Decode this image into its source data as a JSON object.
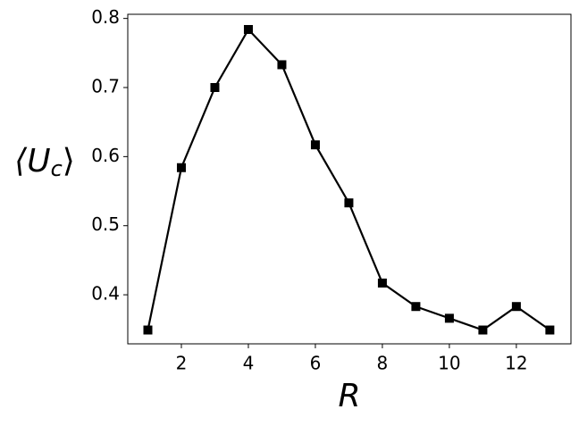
{
  "chart_data": {
    "type": "line",
    "xlabel": "R",
    "ylabel": [
      "⟨U",
      "c",
      "⟩"
    ],
    "x": [
      1,
      2,
      3,
      4,
      5,
      6,
      7,
      8,
      9,
      10,
      11,
      12,
      13
    ],
    "series": [
      {
        "color": "#000000",
        "marker": "square",
        "values": [
          0.349,
          0.584,
          0.7,
          0.784,
          0.733,
          0.617,
          0.533,
          0.417,
          0.383,
          0.366,
          0.349,
          0.383,
          0.349
        ]
      }
    ],
    "xlim": [
      0.4,
      13.63
    ],
    "xticks": [
      2,
      4,
      6,
      8,
      10,
      12
    ],
    "ylim": [
      0.329,
      0.806
    ],
    "yticks": [
      0.4,
      0.5,
      0.6,
      0.7,
      0.8
    ]
  }
}
